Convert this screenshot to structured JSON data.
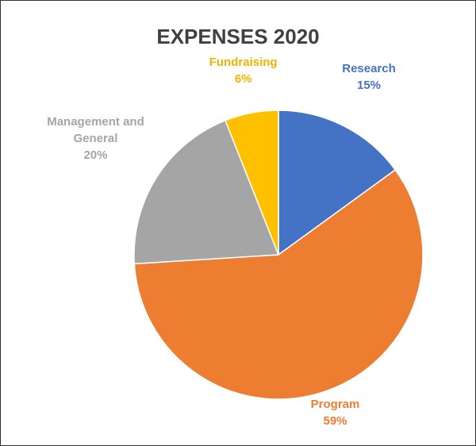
{
  "chart_data": {
    "type": "pie",
    "title": "EXPENSES 2020",
    "categories": [
      "Research",
      "Program",
      "Management and General",
      "Fundraising"
    ],
    "values": [
      15,
      59,
      20,
      6
    ],
    "value_labels": [
      "15%",
      "59%",
      "20%",
      "6%"
    ],
    "colors": [
      "#4472c4",
      "#ed7d31",
      "#a5a5a5",
      "#ffc000"
    ]
  }
}
